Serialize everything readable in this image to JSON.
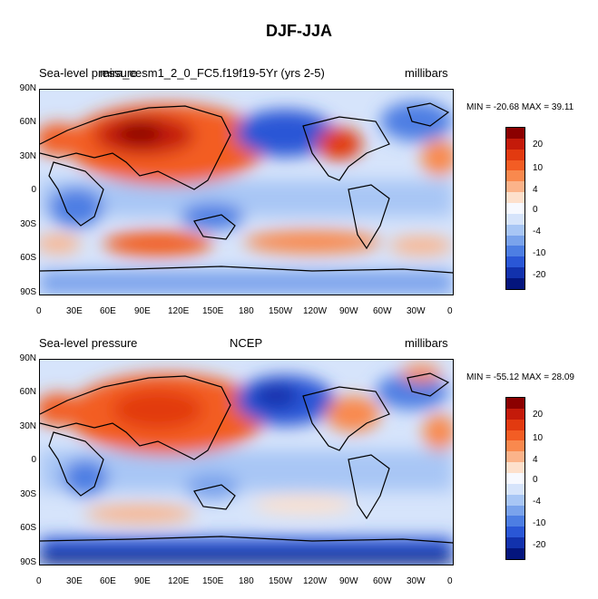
{
  "figure": {
    "title": "DJF-JJA"
  },
  "panels": [
    {
      "left_label": "Sea-level pressure",
      "center_label": "mira_cesm1_2_0_FC5.f19f19-5Yr (yrs 2-5)",
      "right_label": "millibars",
      "stats": "MIN = -20.68 MAX =  39.11"
    },
    {
      "left_label": "Sea-level pressure",
      "center_label": "NCEP",
      "right_label": "millibars",
      "stats": "MIN = -55.12 MAX =  28.09"
    }
  ],
  "axes": {
    "lat_ticks": [
      "90N",
      "60N",
      "30N",
      "0",
      "30S",
      "60S",
      "90S"
    ],
    "lon_ticks": [
      "0",
      "30E",
      "60E",
      "90E",
      "120E",
      "150E",
      "180",
      "150W",
      "120W",
      "90W",
      "60W",
      "30W",
      "0"
    ]
  },
  "colorbar": {
    "colors": [
      "#8b0000",
      "#c41a0a",
      "#e23a10",
      "#f35d24",
      "#f9894e",
      "#fbb38a",
      "#fde0cc",
      "#f7f9ff",
      "#d6e4fb",
      "#a8c6f5",
      "#7aa3ec",
      "#4d7ee3",
      "#2a57d6",
      "#1232ad",
      "#04157d"
    ],
    "labels": [
      "20",
      "10",
      "4",
      "0",
      "-4",
      "-10",
      "-20"
    ]
  }
}
